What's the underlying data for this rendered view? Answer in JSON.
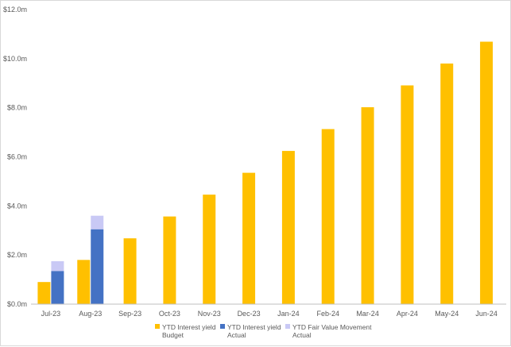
{
  "chart_data": {
    "type": "bar",
    "categories": [
      "Jul-23",
      "Aug-23",
      "Sep-23",
      "Oct-23",
      "Nov-23",
      "Dec-23",
      "Jan-24",
      "Feb-24",
      "Mar-24",
      "Apr-24",
      "May-24",
      "Jun-24"
    ],
    "ylim": [
      0,
      12
    ],
    "yticks": [
      0,
      2,
      4,
      6,
      8,
      10,
      12
    ],
    "ytick_labels": [
      "$0.0m",
      "$2.0m",
      "$4.0m",
      "$6.0m",
      "$8.0m",
      "$10.0m",
      "$12.0m"
    ],
    "grid": false,
    "legend_position": "bottom",
    "series": [
      {
        "name": "YTD Interest yield Budget",
        "legend_lines": [
          "YTD Interest yield",
          "Budget"
        ],
        "color": "#FFC000",
        "values": [
          0.9,
          1.8,
          2.68,
          3.57,
          4.46,
          5.35,
          6.24,
          7.13,
          8.02,
          8.91,
          9.8,
          10.69
        ]
      },
      {
        "name": "YTD Interest yield Actual",
        "legend_lines": [
          "YTD Interest yield",
          "Actual"
        ],
        "color": "#4472C4",
        "stack": "actual",
        "values": [
          1.35,
          3.05,
          null,
          null,
          null,
          null,
          null,
          null,
          null,
          null,
          null,
          null
        ]
      },
      {
        "name": "YTD Fair Value Movement Actual",
        "legend_lines": [
          "YTD Fair Value Movement",
          "Actual"
        ],
        "color": "#C9C9F5",
        "stack": "actual",
        "values": [
          0.4,
          0.55,
          null,
          null,
          null,
          null,
          null,
          null,
          null,
          null,
          null,
          null
        ]
      }
    ]
  }
}
